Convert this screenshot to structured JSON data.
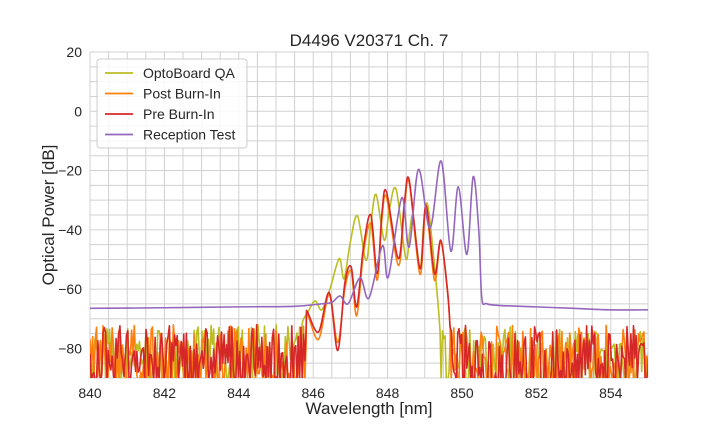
{
  "chart_data": {
    "type": "line",
    "title": "D4496 V20371 Ch. 7",
    "xlabel": "Wavelength [nm]",
    "ylabel": "Optical Power [dB]",
    "xlim": [
      840,
      855
    ],
    "ylim": [
      -90,
      20
    ],
    "xticks": [
      840,
      842,
      844,
      846,
      848,
      850,
      852,
      854
    ],
    "yticks": [
      20,
      0,
      -20,
      -40,
      -60,
      -80
    ],
    "ytick_labels": [
      "20",
      "0",
      "−20",
      "−40",
      "−60",
      "−80"
    ],
    "grid": true,
    "legend_position": "top-left",
    "series": [
      {
        "name": "OptoBoard QA",
        "color": "#bcbd22",
        "noise_floor_dB": [
          -90,
          -72
        ],
        "x": [
          845.7,
          845.85,
          846.05,
          846.23,
          846.45,
          846.7,
          846.83,
          847.0,
          847.19,
          847.42,
          847.55,
          847.69,
          847.91,
          848.05,
          848.23,
          848.49,
          848.6,
          848.69,
          848.87,
          848.97,
          849.08,
          849.29,
          849.41
        ],
        "y": [
          -72,
          -68,
          -64,
          -67,
          -60,
          -49.7,
          -56.5,
          -44,
          -35.3,
          -50.3,
          -38,
          -28.1,
          -43.5,
          -33,
          -26.4,
          -49.7,
          -40,
          -35.6,
          -53.1,
          -38,
          -31.7,
          -55.9,
          -74.5
        ]
      },
      {
        "name": "Post Burn-In",
        "color": "#ff7f0e",
        "noise_floor_dB": [
          -90,
          -72
        ],
        "x": [
          845.82,
          846.14,
          846.43,
          846.66,
          846.85,
          847.02,
          847.17,
          847.35,
          847.55,
          847.72,
          847.85,
          847.97,
          848.29,
          848.45,
          848.58,
          848.87,
          849.03,
          849.26,
          849.43,
          849.61,
          849.68
        ],
        "y": [
          -68,
          -77,
          -62,
          -78,
          -60,
          -54,
          -69,
          -48,
          -38,
          -57,
          -36,
          -29,
          -52,
          -33,
          -24,
          -55,
          -33,
          -57,
          -44,
          -61,
          -73
        ]
      },
      {
        "name": "Pre Burn-In",
        "color": "#d62728",
        "noise_floor_dB": [
          -90,
          -72
        ],
        "x": [
          845.82,
          846.14,
          846.43,
          846.66,
          846.85,
          847.02,
          847.17,
          847.35,
          847.55,
          847.72,
          847.85,
          847.97,
          848.29,
          848.45,
          848.58,
          848.87,
          849.03,
          849.26,
          849.43,
          849.61,
          849.68
        ],
        "y": [
          -67.2,
          -74.5,
          -61.2,
          -80.7,
          -58,
          -52.5,
          -66,
          -46,
          -35,
          -54.8,
          -34,
          -27.2,
          -49.7,
          -31,
          -23.2,
          -53.1,
          -31.7,
          -54.8,
          -43.5,
          -60.4,
          -72.8
        ]
      },
      {
        "name": "Reception Test",
        "color": "#9467bd",
        "x": [
          840,
          842,
          844,
          845.5,
          846.2,
          846.5,
          846.72,
          846.94,
          847.26,
          847.5,
          847.86,
          848.02,
          848.38,
          848.58,
          848.83,
          849.14,
          849.44,
          849.7,
          849.9,
          850.13,
          850.3,
          850.45,
          850.53,
          850.66,
          851,
          852,
          853,
          854,
          855
        ],
        "y": [
          -66.5,
          -66.3,
          -66,
          -65.8,
          -65,
          -64.5,
          -62.3,
          -64.9,
          -56.2,
          -63,
          -45.4,
          -55.9,
          -29.2,
          -45.8,
          -19.6,
          -39.5,
          -16.8,
          -47.2,
          -25.5,
          -48.3,
          -22.1,
          -40,
          -62.7,
          -64.9,
          -65.5,
          -66,
          -66.5,
          -67,
          -67
        ]
      }
    ]
  }
}
